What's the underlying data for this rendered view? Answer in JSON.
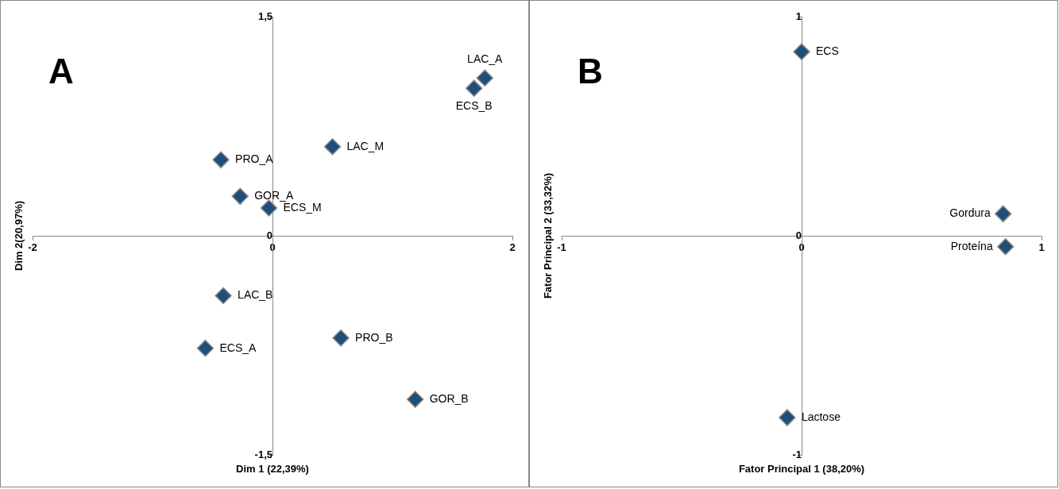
{
  "chart_data": [
    {
      "type": "scatter",
      "xlabel": "Dim 1 (22,39%)",
      "ylabel": "Dim 2(20,97%)",
      "marker": "diamond",
      "grid": false,
      "legend": false,
      "xlim": [
        -2,
        2
      ],
      "ylim": [
        -1.5,
        1.5
      ],
      "xticks": [
        -2,
        0,
        2
      ],
      "yticks": [
        {
          "value": -1.5,
          "label": "-1,5"
        },
        0,
        {
          "value": 1.5,
          "label": "1,5"
        }
      ],
      "series": [
        {
          "color": "#1f4e79",
          "x": [
            1.77,
            1.68,
            0.5,
            -0.43,
            -0.27,
            -0.03,
            -0.41,
            -0.56,
            0.57,
            1.19
          ],
          "values": [
            1.08,
            1.01,
            0.61,
            0.52,
            0.27,
            0.19,
            -0.41,
            -0.77,
            -0.7,
            -1.12
          ]
        }
      ],
      "annotations": [
        "A",
        {
          "text": "LAC_A",
          "x": 1.77,
          "y": 1.08
        },
        {
          "text": "ECS_B",
          "x": 1.68,
          "y": 1.01
        },
        {
          "text": "LAC_M",
          "x": 0.5,
          "y": 0.61
        },
        {
          "text": "PRO_A",
          "x": -0.43,
          "y": 0.52
        },
        {
          "text": "GOR_A",
          "x": -0.27,
          "y": 0.27
        },
        {
          "text": "ECS_M",
          "x": -0.03,
          "y": 0.19
        },
        {
          "text": "LAC_B",
          "x": -0.41,
          "y": -0.41
        },
        {
          "text": "ECS_A",
          "x": -0.56,
          "y": -0.77
        },
        {
          "text": "PRO_B",
          "x": 0.57,
          "y": -0.7
        },
        {
          "text": "GOR_B",
          "x": 1.19,
          "y": -1.12
        }
      ]
    },
    {
      "type": "scatter",
      "xlabel": "Fator Principal 1 (38,20%)",
      "ylabel": "Fator Principal 2 (33,32%)",
      "marker": "diamond",
      "grid": false,
      "legend": false,
      "xlim": [
        -1,
        1
      ],
      "ylim": [
        -1,
        1
      ],
      "xticks": [
        -1,
        0,
        1
      ],
      "yticks": [
        -1,
        0,
        1
      ],
      "series": [
        {
          "color": "#1f4e79",
          "x": [
            0,
            0.84,
            0.85,
            -0.06
          ],
          "values": [
            0.84,
            0.1,
            -0.05,
            -0.83
          ]
        }
      ],
      "annotations": [
        "B",
        {
          "text": "ECS",
          "x": 0,
          "y": 0.84
        },
        {
          "text": "Gordura",
          "x": 0.84,
          "y": 0.1
        },
        {
          "text": "Proteína",
          "x": 0.85,
          "y": -0.05
        },
        {
          "text": "Lactose",
          "x": -0.06,
          "y": -0.83
        }
      ]
    }
  ]
}
